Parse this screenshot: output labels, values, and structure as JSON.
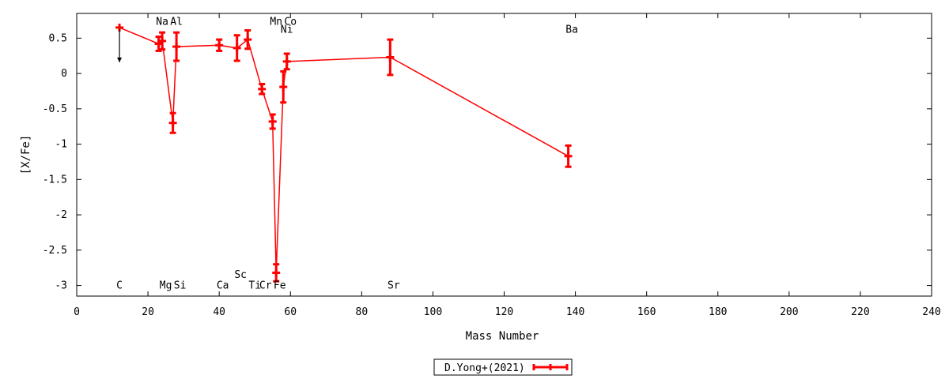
{
  "chart_data": {
    "type": "line",
    "xlabel": "Mass Number",
    "ylabel": "[X/Fe]",
    "xlim": [
      0,
      240
    ],
    "ylim": [
      -3.15,
      0.85
    ],
    "x_ticks": [
      0,
      20,
      40,
      60,
      80,
      100,
      120,
      140,
      160,
      180,
      200,
      220,
      240
    ],
    "y_ticks": [
      -3,
      -2.5,
      -2,
      -1.5,
      -1,
      -0.5,
      0,
      0.5
    ],
    "y_tick_labels": [
      "-3",
      "-2.5",
      "-2",
      "-1.5",
      "-1",
      "-0.5",
      "0",
      "0.5"
    ],
    "grid": false,
    "legend_position": "bottom-center",
    "series": [
      {
        "name": "D.Yong+(2021)",
        "color": "#ff0000",
        "points": [
          {
            "x": 12,
            "y": 0.65,
            "err": 0.0,
            "upper_limit": true
          },
          {
            "x": 23,
            "y": 0.42,
            "err": 0.1
          },
          {
            "x": 24,
            "y": 0.46,
            "err": 0.12
          },
          {
            "x": 27,
            "y": -0.7,
            "err": 0.14
          },
          {
            "x": 28,
            "y": 0.38,
            "err": 0.2
          },
          {
            "x": 40,
            "y": 0.4,
            "err": 0.08
          },
          {
            "x": 45,
            "y": 0.36,
            "err": 0.18
          },
          {
            "x": 48,
            "y": 0.48,
            "err": 0.13
          },
          {
            "x": 52,
            "y": -0.22,
            "err": 0.07
          },
          {
            "x": 55,
            "y": -0.68,
            "err": 0.1
          },
          {
            "x": 56,
            "y": -2.82,
            "err": 0.12
          },
          {
            "x": 58,
            "y": -0.19,
            "err": 0.22
          },
          {
            "x": 59,
            "y": 0.17,
            "err": 0.11
          },
          {
            "x": 88,
            "y": 0.23,
            "err": 0.25
          },
          {
            "x": 138,
            "y": -1.17,
            "err": 0.15
          }
        ]
      }
    ],
    "element_labels": [
      {
        "text": "C",
        "x": 12,
        "y": -3.0
      },
      {
        "text": "Na",
        "x": 24,
        "y": 0.73
      },
      {
        "text": "Mg",
        "x": 25,
        "y": -3.0
      },
      {
        "text": "Al",
        "x": 28,
        "y": 0.73
      },
      {
        "text": "Si",
        "x": 29,
        "y": -3.0
      },
      {
        "text": "Ca",
        "x": 41,
        "y": -3.0
      },
      {
        "text": "Sc",
        "x": 46,
        "y": -2.85
      },
      {
        "text": "Ti",
        "x": 50,
        "y": -3.0
      },
      {
        "text": "Cr",
        "x": 53,
        "y": -3.0
      },
      {
        "text": "Fe",
        "x": 57,
        "y": -3.0
      },
      {
        "text": "Mn",
        "x": 56,
        "y": 0.73
      },
      {
        "text": "Co",
        "x": 60,
        "y": 0.73
      },
      {
        "text": "Ni",
        "x": 59,
        "y": 0.62
      },
      {
        "text": "Sr",
        "x": 89,
        "y": -3.0
      },
      {
        "text": "Ba",
        "x": 139,
        "y": 0.62
      }
    ]
  },
  "legend": {
    "label": "D.Yong+(2021)"
  }
}
